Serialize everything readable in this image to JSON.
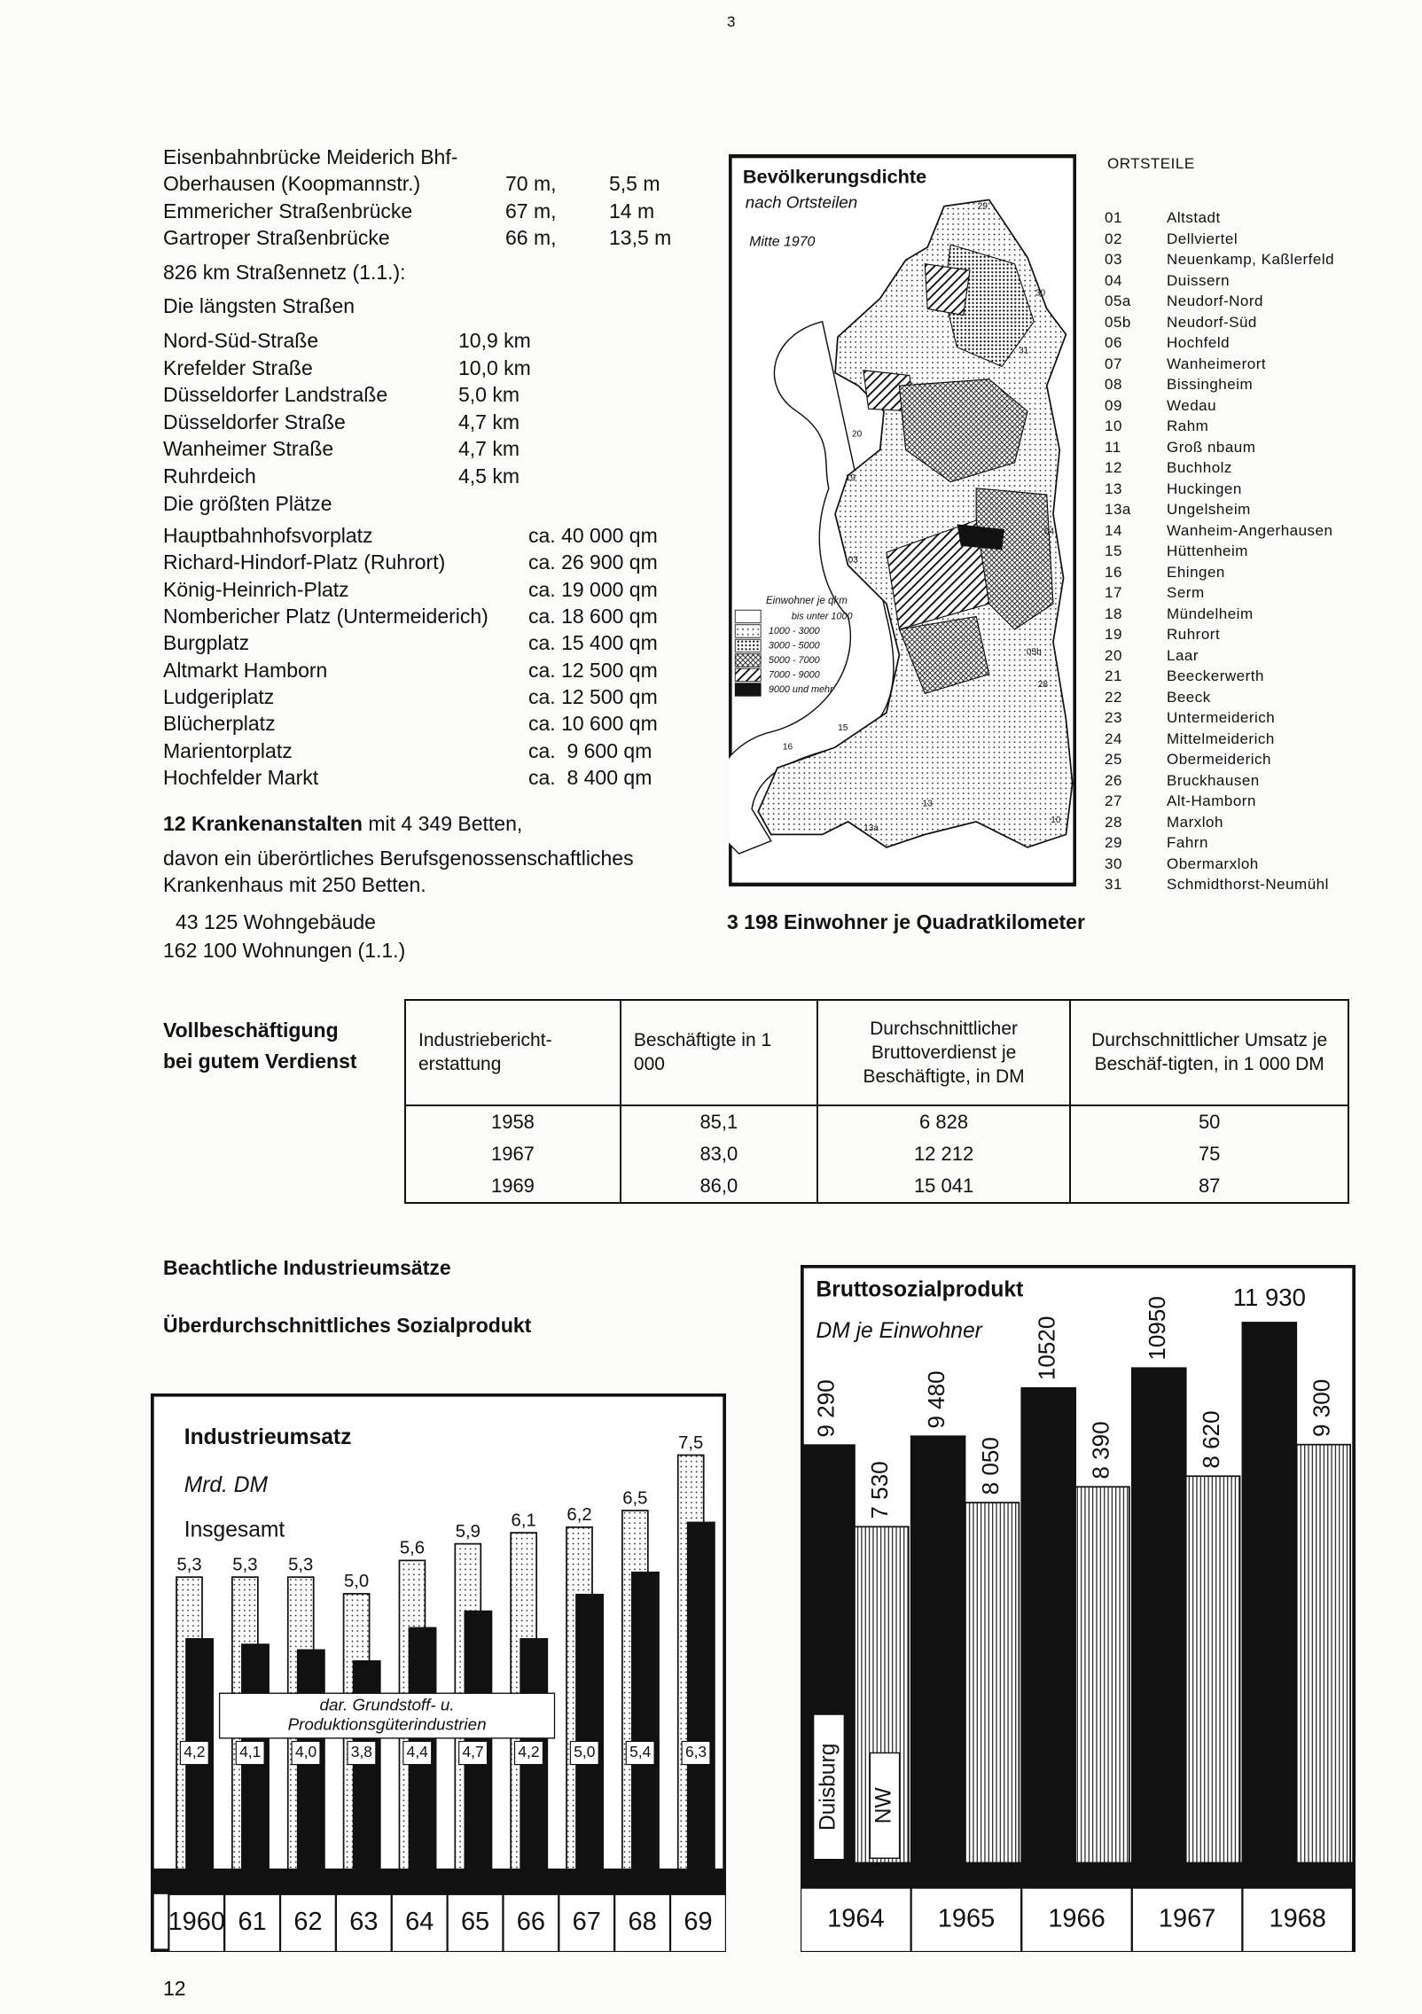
{
  "page_mark": "3",
  "bridges": [
    {
      "label": [
        "Eisenbahnbrücke Meiderich Bhf-",
        "Oberhausen (Koopmannstr.)"
      ],
      "length": "70 m,",
      "height": "5,5 m"
    },
    {
      "label": [
        "Emmericher Straßenbrücke"
      ],
      "length": "67 m,",
      "height": "14 m"
    },
    {
      "label": [
        "Gartroper Straßenbrücke"
      ],
      "length": "66 m,",
      "height": "13,5 m"
    }
  ],
  "road_network": "826 km Straßennetz (1.1.):",
  "longest_streets": {
    "title": "Die längsten Straßen",
    "rows": [
      [
        "Nord-Süd-Straße",
        "10,9 km"
      ],
      [
        "Krefelder Straße",
        "10,0 km"
      ],
      [
        "Düsseldorfer Landstraße",
        "5,0 km"
      ],
      [
        "Düsseldorfer Straße",
        "4,7 km"
      ],
      [
        "Wanheimer Straße",
        "4,7 km"
      ],
      [
        "Ruhrdeich",
        "4,5 km"
      ]
    ]
  },
  "largest_squares": {
    "title": "Die größten Plätze",
    "rows": [
      [
        "Hauptbahnhofsvorplatz",
        "ca. 40 000 qm"
      ],
      [
        "Richard-Hindorf-Platz (Ruhrort)",
        "ca. 26 900 qm"
      ],
      [
        "König-Heinrich-Platz",
        "ca. 19 000 qm"
      ],
      [
        "Nombericher Platz (Untermeiderich)",
        "ca. 18 600 qm"
      ],
      [
        "Burgplatz",
        "ca. 15 400 qm"
      ],
      [
        "Altmarkt Hamborn",
        "ca. 12 500 qm"
      ],
      [
        "Ludgeriplatz",
        "ca. 12 500 qm"
      ],
      [
        "Blücherplatz",
        "ca. 10 600 qm"
      ],
      [
        "Marientorplatz",
        "ca.  9 600 qm"
      ],
      [
        "Hochfelder Markt",
        "ca.  8 400 qm"
      ]
    ]
  },
  "hospitals": {
    "count": "12 Krankenanstalten",
    "lines": [
      " mit 4 349 Betten,",
      "davon ein überörtliches Berufsgenossenschaftliches",
      "Krankenhaus mit 250 Betten."
    ]
  },
  "housing": [
    "43 125 Wohngebäude",
    "162 100 Wohnungen (1.1.)"
  ],
  "map": {
    "title": "Bevölkerungsdichte",
    "subtitle": "nach Ortsteilen",
    "date": "Mitte 1970",
    "legend_title": "Einwohner je qkm",
    "legend": [
      "bis unter 1000",
      "1000 - 3000",
      "3000 - 5000",
      "5000 - 7000",
      "7000 - 9000",
      "9000 und mehr"
    ],
    "labels": [
      "29",
      "30",
      "31",
      "20",
      "19",
      "04",
      "03",
      "05b",
      "28",
      "16",
      "15",
      "13",
      "13a",
      "10"
    ],
    "caption": "3 198 Einwohner je Quadratkilometer"
  },
  "districts": {
    "title": "ORTSTEILE",
    "rows": [
      [
        "01",
        "Altstadt"
      ],
      [
        "02",
        "Dellviertel"
      ],
      [
        "03",
        "Neuenkamp, Kaßlerfeld"
      ],
      [
        "04",
        "Duissern"
      ],
      [
        "05a",
        "Neudorf-Nord"
      ],
      [
        "05b",
        "Neudorf-Süd"
      ],
      [
        "06",
        "Hochfeld"
      ],
      [
        "07",
        "Wanheimerort"
      ],
      [
        "08",
        "Bissingheim"
      ],
      [
        "09",
        "Wedau"
      ],
      [
        "10",
        "Rahm"
      ],
      [
        "11",
        "Groß nbaum"
      ],
      [
        "12",
        "Buchholz"
      ],
      [
        "13",
        "Huckingen"
      ],
      [
        "13a",
        "Ungelsheim"
      ],
      [
        "14",
        "Wanheim-Angerhausen"
      ],
      [
        "15",
        "Hüttenheim"
      ],
      [
        "16",
        "Ehingen"
      ],
      [
        "17",
        "Serm"
      ],
      [
        "18",
        "Mündelheim"
      ],
      [
        "19",
        "Ruhrort"
      ],
      [
        "20",
        "Laar"
      ],
      [
        "21",
        "Beeckerwerth"
      ],
      [
        "22",
        "Beeck"
      ],
      [
        "23",
        "Untermeiderich"
      ],
      [
        "24",
        "Mittelmeiderich"
      ],
      [
        "25",
        "Obermeiderich"
      ],
      [
        "26",
        "Bruckhausen"
      ],
      [
        "27",
        "Alt-Hamborn"
      ],
      [
        "28",
        "Marxloh"
      ],
      [
        "29",
        "Fahrn"
      ],
      [
        "30",
        "Obermarxloh"
      ],
      [
        "31",
        "Schmidthorst-Neumühl"
      ]
    ]
  },
  "employment": {
    "heading": [
      "Vollbeschäftigung",
      "bei gutem Verdienst"
    ],
    "table": {
      "header": [
        "Industriebericht-erstattung",
        "Beschäftigte in 1 000",
        "Durchschnittlicher Bruttoverdienst je Beschäftigte, in DM",
        "Durchschnittlicher Umsatz je Beschäf-tigten, in 1 000 DM"
      ],
      "rows": [
        [
          "1958",
          "85,1",
          "6 828",
          "50"
        ],
        [
          "1967",
          "83,0",
          "12 212",
          "75"
        ],
        [
          "1969",
          "86,0",
          "15 041",
          "87"
        ]
      ]
    }
  },
  "headings": [
    "Beachtliche Industrieumsätze",
    "Überdurchschnittliches Sozialprodukt"
  ],
  "chart_data": [
    {
      "type": "bar",
      "title": "Industrieumsatz",
      "subtitle": "Mrd. DM",
      "bar_layout": "overlap",
      "categories": [
        "1960",
        "61",
        "62",
        "63",
        "64",
        "65",
        "66",
        "67",
        "68",
        "69"
      ],
      "series": [
        {
          "name": "Insgesamt",
          "color": "#ffffff",
          "pattern": "dots",
          "values": [
            5.3,
            5.3,
            5.3,
            5.0,
            5.6,
            5.9,
            6.1,
            6.2,
            6.5,
            7.5
          ],
          "value_labels": [
            "5,3",
            "5,3",
            "5,3",
            "5,0",
            "5,6",
            "5,9",
            "6,1",
            "6,2",
            "6,5",
            "7,5"
          ]
        },
        {
          "name": "dar. Grundstoff- u. Produktionsgüterindustrien",
          "color": "#111111",
          "pattern": "solid",
          "values": [
            4.2,
            4.1,
            4.0,
            3.8,
            4.4,
            4.7,
            4.2,
            5.0,
            5.4,
            6.3
          ],
          "value_labels": [
            "4,2",
            "4,1",
            "4,0",
            "3,8",
            "4,4",
            "4,7",
            "4,2",
            "5,0",
            "5,4",
            "6,3"
          ]
        }
      ]
    },
    {
      "type": "bar",
      "title": "Bruttosozialprodukt",
      "subtitle": "DM je Einwohner",
      "bar_layout": "grouped",
      "categories": [
        "1964",
        "1965",
        "1966",
        "1967",
        "1968"
      ],
      "series": [
        {
          "name": "Duisburg",
          "color": "#111111",
          "pattern": "solid",
          "values": [
            9290,
            9480,
            10520,
            10950,
            11930
          ],
          "value_labels": [
            "9 290",
            "9 480",
            "10520",
            "10950",
            "11 930"
          ]
        },
        {
          "name": "NW",
          "color": "#ffffff",
          "pattern": "vertical-stripes",
          "values": [
            7530,
            8050,
            8390,
            8620,
            9300
          ],
          "value_labels": [
            "7 530",
            "8 050",
            "8 390",
            "8 620",
            "9 300"
          ]
        }
      ]
    }
  ],
  "page_number": "12"
}
